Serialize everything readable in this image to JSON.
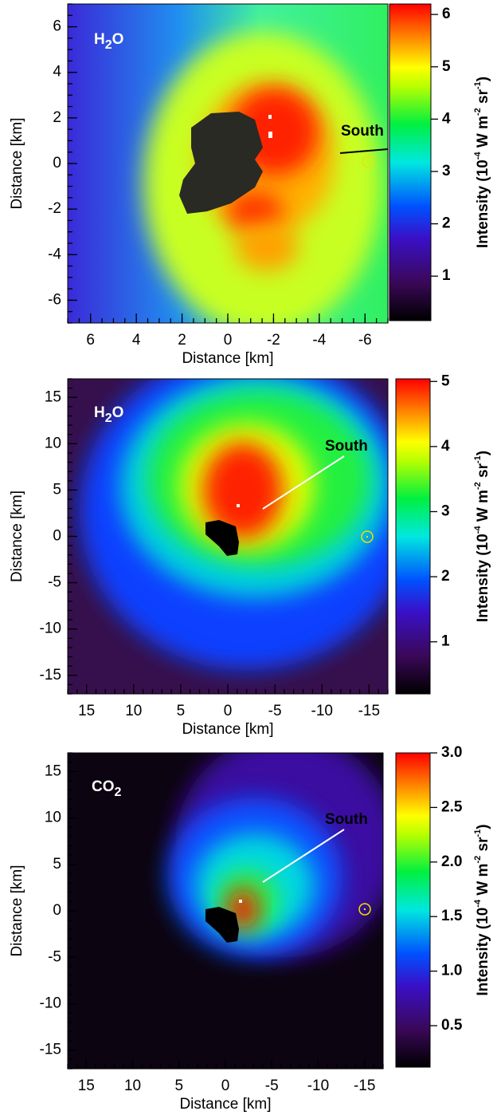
{
  "chart_data": [
    {
      "type": "heatmap",
      "title": [
        "H",
        "2",
        "O"
      ],
      "annotation": "South",
      "annotation_color": "#000000",
      "xlabel": "Distance [km]",
      "ylabel": "Distance [km]",
      "xlim": [
        7,
        -7
      ],
      "xticks": [
        6,
        4,
        2,
        0,
        -2,
        -4,
        -6
      ],
      "ylim": [
        -7,
        7
      ],
      "yticks": [
        -6,
        -4,
        -2,
        0,
        2,
        4,
        6
      ],
      "colorbar_label": [
        "Intensity (10",
        "-4",
        " W m",
        "-2",
        " sr",
        "-1",
        ")"
      ],
      "clim": [
        0.15,
        6.2
      ],
      "cticks": [
        1,
        2,
        3,
        4,
        5,
        6
      ]
    },
    {
      "type": "heatmap",
      "title": [
        "H",
        "2",
        "O"
      ],
      "annotation": "South",
      "annotation_color": "#ffffff",
      "xlabel": "Distance [km]",
      "ylabel": "Distance [km]",
      "xlim": [
        17,
        -17
      ],
      "xticks": [
        15,
        10,
        5,
        0,
        -5,
        -10,
        -15
      ],
      "ylim": [
        -17,
        17
      ],
      "yticks": [
        -15,
        -10,
        -5,
        0,
        5,
        10,
        15
      ],
      "colorbar_label": [
        "Intensity (10",
        "-4",
        " W m",
        "-2",
        " sr",
        "-1",
        ")"
      ],
      "clim": [
        0.2,
        5.04
      ],
      "cticks": [
        1,
        2,
        3,
        4,
        5
      ]
    },
    {
      "type": "heatmap",
      "title": [
        "CO",
        "2"
      ],
      "annotation": "South",
      "annotation_color": "#ffffff",
      "xlabel": "Distance [km]",
      "ylabel": "Distance [km]",
      "xlim": [
        17,
        -17
      ],
      "xticks": [
        15,
        10,
        5,
        0,
        -5,
        -10,
        -15
      ],
      "ylim": [
        -17,
        17
      ],
      "yticks": [
        -15,
        -10,
        -5,
        0,
        5,
        10,
        15
      ],
      "colorbar_label": [
        "Intensity (10",
        "-4",
        " W m",
        "-2",
        " sr",
        "-1",
        ")"
      ],
      "clim": [
        0.12,
        3.0
      ],
      "cticks": [
        0.5,
        {
          "value": 1.0,
          "label": "1.0"
        },
        1.5,
        {
          "value": 2.0,
          "label": "2.0"
        },
        2.5,
        {
          "value": 3.0,
          "label": "3.0"
        }
      ]
    }
  ]
}
